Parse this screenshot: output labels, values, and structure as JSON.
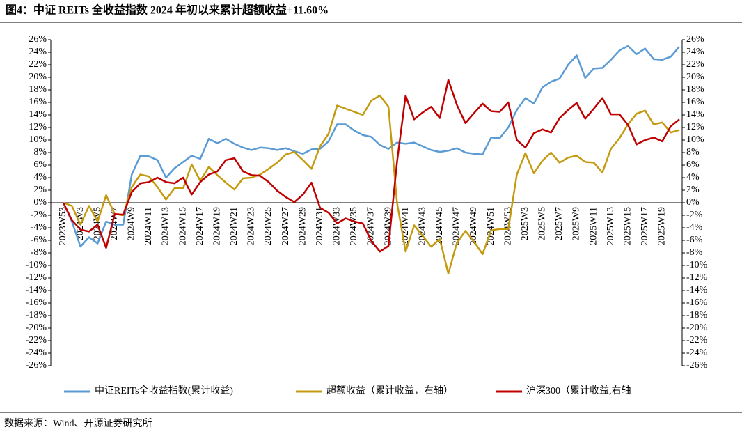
{
  "chart_data": {
    "type": "line",
    "title": "图4：中证 REITs 全收益指数 2024 年初以来累计超额收益+11.60%",
    "source": "数据来源：Wind、开源证券研究所",
    "categories": [
      "2023W53",
      null,
      "2024W3",
      null,
      "2024W5",
      null,
      "2024W7",
      null,
      "2024W9",
      null,
      "2024W11",
      null,
      "2024W13",
      null,
      "2024W15",
      null,
      "2024W17",
      null,
      "2024W19",
      null,
      "2024W21",
      null,
      "2024W23",
      null,
      "2024W25",
      null,
      "2024W27",
      null,
      "2024W29",
      null,
      "2024W31",
      null,
      "2024W33",
      null,
      "2024W35",
      null,
      "2024W37",
      null,
      "2024W39",
      null,
      "2024W41",
      null,
      "2024W43",
      null,
      "2024W45",
      null,
      "2024W47",
      null,
      "2024W49",
      null,
      "2024W51",
      null,
      "2024W53",
      null,
      "2025W3",
      null,
      "2025W5",
      null,
      "2025W7",
      null,
      "2025W9",
      null,
      "2025W11",
      null,
      "2025W13",
      null,
      "2025W15",
      null,
      "2025W17",
      null,
      "2025W19",
      null,
      null
    ],
    "series": [
      {
        "name": "中证REITs全收益指数(累计收益)",
        "color": "#5b9bd5",
        "axis": "y",
        "values": [
          0,
          -3,
          -7,
          -5.5,
          -6.5,
          -3,
          -3.5,
          -3.5,
          4.5,
          7.5,
          7.4,
          6.8,
          4,
          5.5,
          6.5,
          7.5,
          7,
          10.2,
          9.5,
          10.2,
          9.4,
          8.8,
          8.4,
          8.8,
          8.7,
          8.4,
          8.7,
          8.2,
          7.8,
          8.5,
          8.6,
          9.8,
          12.5,
          12.5,
          11.5,
          10.8,
          10.5,
          9.2,
          8.6,
          9.6,
          9.4,
          9.6,
          9.0,
          8.4,
          8.1,
          8.3,
          8.7,
          8.0,
          7.8,
          7.7,
          10.4,
          10.3,
          12,
          14.8,
          16.7,
          15.8,
          18.4,
          19.3,
          19.8,
          22,
          23.5,
          19.9,
          21.4,
          21.5,
          22.8,
          24.3,
          25,
          23.7,
          24.6,
          22.9,
          22.8,
          23.3,
          24.9
        ]
      },
      {
        "name": "超额收益（累计收益，右轴）",
        "color": "#c49a0f",
        "axis": "y2",
        "values": [
          0,
          -0.5,
          -3.5,
          -0.5,
          -3,
          1.2,
          -1.8,
          -2,
          2.5,
          4.5,
          4.2,
          2.5,
          0.5,
          2.3,
          2.3,
          6.1,
          3.5,
          5.7,
          4.4,
          3.2,
          2.1,
          3.9,
          4.0,
          4.5,
          5.4,
          6.4,
          7.7,
          8.1,
          6.8,
          5.4,
          9.0,
          11,
          15.5,
          15,
          14.5,
          14,
          16.3,
          17.1,
          15.3,
          0,
          -7.8,
          -3.6,
          -5.3,
          -7,
          -5.8,
          -11.3,
          -6.4,
          -4.5,
          -6.2,
          -8.2,
          -4.4,
          -4.2,
          -4.2,
          4.5,
          7.9,
          4.7,
          6.7,
          8.0,
          6.4,
          7.2,
          7.5,
          6.5,
          6.4,
          4.8,
          8.6,
          10.3,
          12.5,
          14.2,
          14.7,
          12.5,
          12.8,
          11.2,
          11.6
        ]
      },
      {
        "name": "沪深300（累计收益,右轴",
        "color": "#c00000",
        "axis": "y2",
        "values": [
          0,
          -2.8,
          -4.3,
          -4.6,
          -3.5,
          -7.2,
          -1.8,
          -1.9,
          1.7,
          3.1,
          3.3,
          4.0,
          3.3,
          3.1,
          4.0,
          1.3,
          3.3,
          4.5,
          5.0,
          6.8,
          7.1,
          5.0,
          4.4,
          4.3,
          3.3,
          1.9,
          0.9,
          0.1,
          1.3,
          3.2,
          -0.8,
          -1.6,
          -3.3,
          -2.5,
          -3.0,
          -3.3,
          -6.1,
          -7.8,
          -6.9,
          6.5,
          17.1,
          13.3,
          14.4,
          15.3,
          13.5,
          19.6,
          15.6,
          12.7,
          14.3,
          15.8,
          14.6,
          14.5,
          16.0,
          10.0,
          8.8,
          11.1,
          11.7,
          11.2,
          13.5,
          14.8,
          15.9,
          13.4,
          15.0,
          16.7,
          14.1,
          14.1,
          12.4,
          9.3,
          10.0,
          10.4,
          9.8,
          12.2,
          13.3
        ]
      }
    ],
    "ylim": [
      -26,
      26
    ],
    "yticks": [
      {
        "value": 26,
        "label": "26%"
      },
      {
        "value": 24,
        "label": "24%"
      },
      {
        "value": 22,
        "label": "22%"
      },
      {
        "value": 20,
        "label": "20%"
      },
      {
        "value": 18,
        "label": "18%"
      },
      {
        "value": 16,
        "label": "16%"
      },
      {
        "value": 14,
        "label": "14%"
      },
      {
        "value": 12,
        "label": "12%"
      },
      {
        "value": 10,
        "label": "10%"
      },
      {
        "value": 8,
        "label": "8%"
      },
      {
        "value": 6,
        "label": "6%"
      },
      {
        "value": 4,
        "label": "4%"
      },
      {
        "value": 2,
        "label": "2%"
      },
      {
        "value": 0,
        "label": "0%"
      },
      {
        "value": -2,
        "label": "-2%"
      },
      {
        "value": -4,
        "label": "-4%"
      },
      {
        "value": -6,
        "label": "-6%"
      },
      {
        "value": -8,
        "label": "-8%"
      },
      {
        "value": -10,
        "label": "-10%"
      },
      {
        "value": -12,
        "label": "-12%"
      },
      {
        "value": -14,
        "label": "-14%"
      },
      {
        "value": -16,
        "label": "-16%"
      },
      {
        "value": -18,
        "label": "-18%"
      },
      {
        "value": -20,
        "label": "-20%"
      },
      {
        "value": -22,
        "label": "-22%"
      },
      {
        "value": -24,
        "label": "-24%"
      },
      {
        "value": -26,
        "label": "-26%"
      }
    ],
    "y2lim": [
      -26,
      26
    ],
    "y2ticks": [
      {
        "value": 26,
        "label": "26%"
      },
      {
        "value": 24,
        "label": "24%"
      },
      {
        "value": 22,
        "label": "22%"
      },
      {
        "value": 20,
        "label": "20%"
      },
      {
        "value": 18,
        "label": "18%"
      },
      {
        "value": 16,
        "label": "16%"
      },
      {
        "value": 14,
        "label": "14%"
      },
      {
        "value": 12,
        "label": "12%"
      },
      {
        "value": 10,
        "label": "10%"
      },
      {
        "value": 8,
        "label": "8%"
      },
      {
        "value": 6,
        "label": "6%"
      },
      {
        "value": 4,
        "label": "4%"
      },
      {
        "value": 2,
        "label": "2%"
      },
      {
        "value": 0,
        "label": "0%"
      },
      {
        "value": -2,
        "label": "-2%"
      },
      {
        "value": -4,
        "label": "-4%"
      },
      {
        "value": -6,
        "label": "-6%"
      },
      {
        "value": -8,
        "label": "-8%"
      },
      {
        "value": -10,
        "label": "-10%"
      },
      {
        "value": -12,
        "label": "-12%"
      },
      {
        "value": -14,
        "label": "-14%"
      },
      {
        "value": -16,
        "label": "-16%"
      },
      {
        "value": -18,
        "label": "-18%"
      },
      {
        "value": -20,
        "label": "-20%"
      },
      {
        "value": -22,
        "label": "-22%"
      },
      {
        "value": -24,
        "label": "-24%"
      },
      {
        "value": -26,
        "label": "-26%"
      }
    ],
    "grid": false,
    "legend": "bottom"
  }
}
